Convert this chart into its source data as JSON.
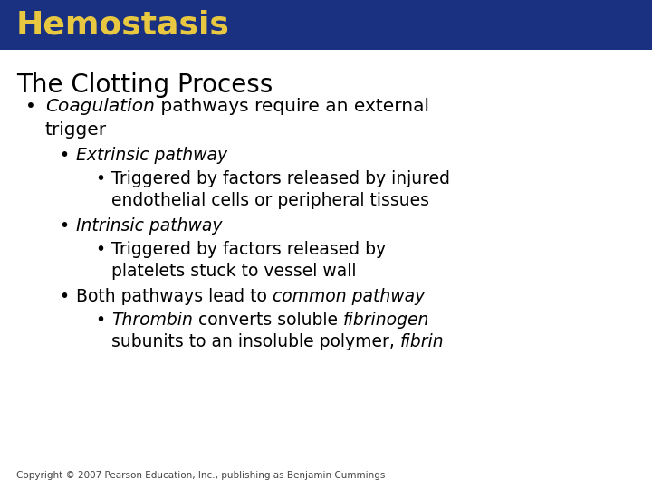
{
  "title": "Hemostasis",
  "title_color": "#E8C840",
  "title_bg_color": "#1A3080",
  "slide_bg_color": "#FFFFFF",
  "subtitle": "The Clotting Process",
  "copyright": "Copyright © 2007 Pearson Education, Inc., publishing as Benjamin Cummings"
}
